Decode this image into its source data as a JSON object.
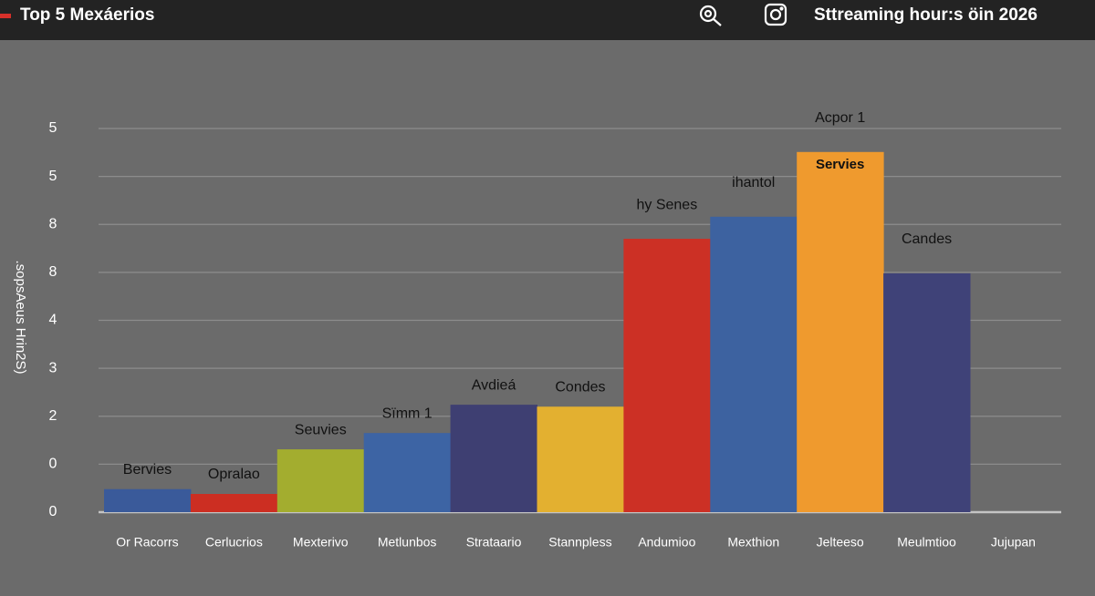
{
  "header": {
    "title": "Top 5 Mexáerios",
    "right_title": "Sttreaming hour:s öin 2026"
  },
  "chart_data": {
    "type": "bar",
    "y_label": ".sopsAeus Hrin2S)",
    "categories": [
      "Or Racorrs",
      "Cerlucrios",
      "Mexterivo",
      "Metlunbos",
      "Strataario",
      "Stannpless",
      "Andumioo",
      "Mexthion",
      "Jelteeso",
      "Meulmtioo",
      "Jujupan"
    ],
    "values": [
      0.48,
      0.38,
      1.31,
      1.65,
      2.24,
      2.2,
      5.7,
      6.16,
      7.51,
      4.98,
      null
    ],
    "colors": [
      "#3a5a9a",
      "#cc2e22",
      "#a3ad2f",
      "#3d64a4",
      "#3e3f72",
      "#e3b030",
      "#cc3025",
      "#3d62a0",
      "#ef9a2e",
      "#3f4278",
      "#6b6b6b"
    ],
    "bar_labels": [
      "Bervies",
      "Opralao",
      "Seuvies",
      "Sïmm 1",
      "Avdieá",
      "Condes",
      "hy Senes",
      "ihantol",
      "Acpor 1",
      "Candes",
      null
    ],
    "inner_label": {
      "index": 8,
      "text": "Servies"
    },
    "ylim": [
      0,
      8
    ],
    "yticks": [
      0,
      {
        "value": 1,
        "label": "0"
      },
      2,
      3,
      4,
      {
        "value": 5,
        "label": "8"
      },
      {
        "value": 6,
        "label": "8"
      },
      {
        "value": 7,
        "label": "5"
      },
      {
        "value": 8,
        "label": "5"
      }
    ],
    "grid": true
  }
}
